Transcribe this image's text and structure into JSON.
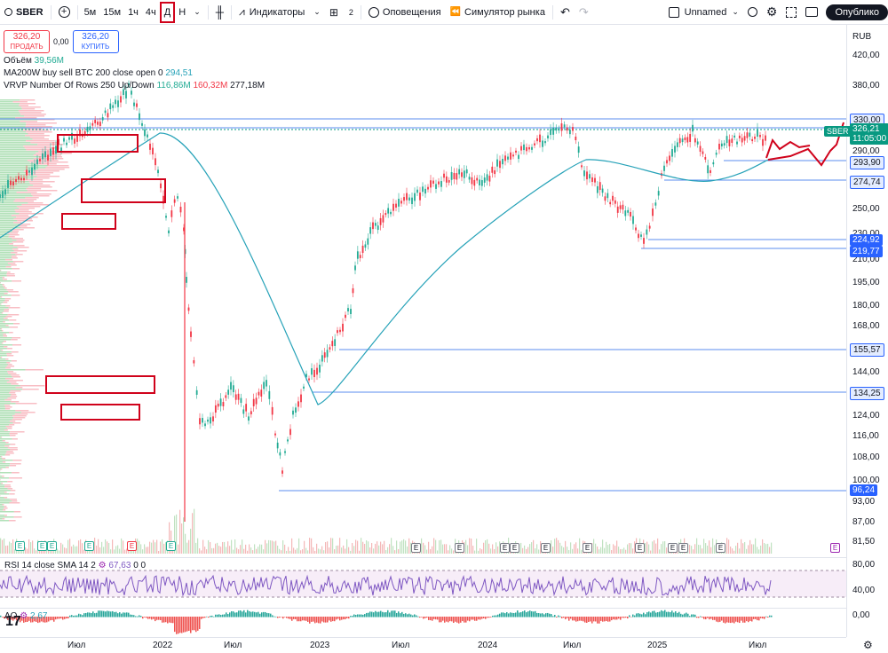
{
  "toolbar": {
    "symbol": "SBER",
    "timeframes": [
      "5м",
      "15м",
      "1ч",
      "4ч",
      "Д",
      "Н"
    ],
    "active_timeframe": "Д",
    "indicators_label": "Индикаторы",
    "templates_count": "2",
    "alerts_label": "Оповещения",
    "replay_label": "Симулятор рынка",
    "layout_name": "Unnamed",
    "publish_label": "Опублико"
  },
  "legend": {
    "sell_price": "326,20",
    "sell_label": "ПРОДАТЬ",
    "spread": "0,00",
    "buy_price": "326,20",
    "buy_label": "КУПИТЬ",
    "volume_label": "Объём",
    "volume_value": "39,56M",
    "ma_label": "MA200W buy sell BTC 200 close open 0",
    "ma_value": "294,51",
    "vrvp_label": "VRVP Number Of Rows 250 Up/Down",
    "vrvp_up": "116,86M",
    "vrvp_down": "160,32M",
    "vrvp_total": "277,18M"
  },
  "price_scale": {
    "currency": "RUB",
    "ticks": [
      "420,00",
      "380,00",
      "290,00",
      "250,00",
      "230,00",
      "210,00",
      "195,00",
      "180,00",
      "168,00",
      "144,00",
      "124,00",
      "116,00",
      "108,00",
      "100,00",
      "93,00",
      "87,00",
      "81,50"
    ],
    "levels": [
      "330,00",
      "293,90",
      "274,74",
      "224,92",
      "219,77",
      "155,57",
      "134,25",
      "96,24"
    ],
    "current_symbol": "SBER",
    "current_price": "326,21",
    "countdown": "11:05:00"
  },
  "rsi": {
    "label": "RSI 14 close SMA 14 2",
    "value": "67,63",
    "v2": "0",
    "v3": "0",
    "ticks": [
      "80,00",
      "40,00"
    ]
  },
  "ao": {
    "label": "AO",
    "value": "2,67",
    "tick": "0,00"
  },
  "time_axis": {
    "labels": [
      "Июл",
      "2022",
      "Июл",
      "2023",
      "Июл",
      "2024",
      "Июл",
      "2025",
      "Июл"
    ]
  },
  "logo_text": "17",
  "colors": {
    "up": "#22ab94",
    "down": "#f23645",
    "ma": "#26a2b8",
    "levels": "#2962ff",
    "annotation": "#d0021b",
    "forecast": "#d0021b"
  }
}
